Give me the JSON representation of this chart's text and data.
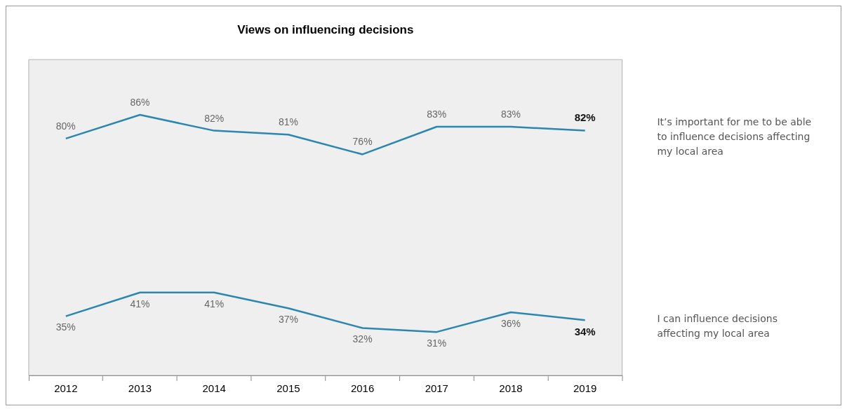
{
  "chart_data": {
    "type": "line",
    "title": "Views on influencing decisions",
    "categories": [
      "2012",
      "2013",
      "2014",
      "2015",
      "2016",
      "2017",
      "2018",
      "2019"
    ],
    "series": [
      {
        "name": "It’s important for me to be able to influence decisions affecting my local area",
        "color": "#2b86b0",
        "values": [
          80,
          86,
          82,
          81,
          76,
          83,
          83,
          82
        ],
        "value_labels": [
          "80%",
          "86%",
          "82%",
          "81%",
          "76%",
          "83%",
          "83%",
          "82%"
        ]
      },
      {
        "name": "I can influence decisions affecting my local area",
        "color": "#2b86b0",
        "values": [
          35,
          41,
          41,
          37,
          32,
          31,
          36,
          34
        ],
        "value_labels": [
          "35%",
          "41%",
          "41%",
          "37%",
          "32%",
          "31%",
          "36%",
          "34%"
        ]
      }
    ],
    "grid": false,
    "legend": false,
    "marker": "none",
    "line_style": "solid"
  }
}
